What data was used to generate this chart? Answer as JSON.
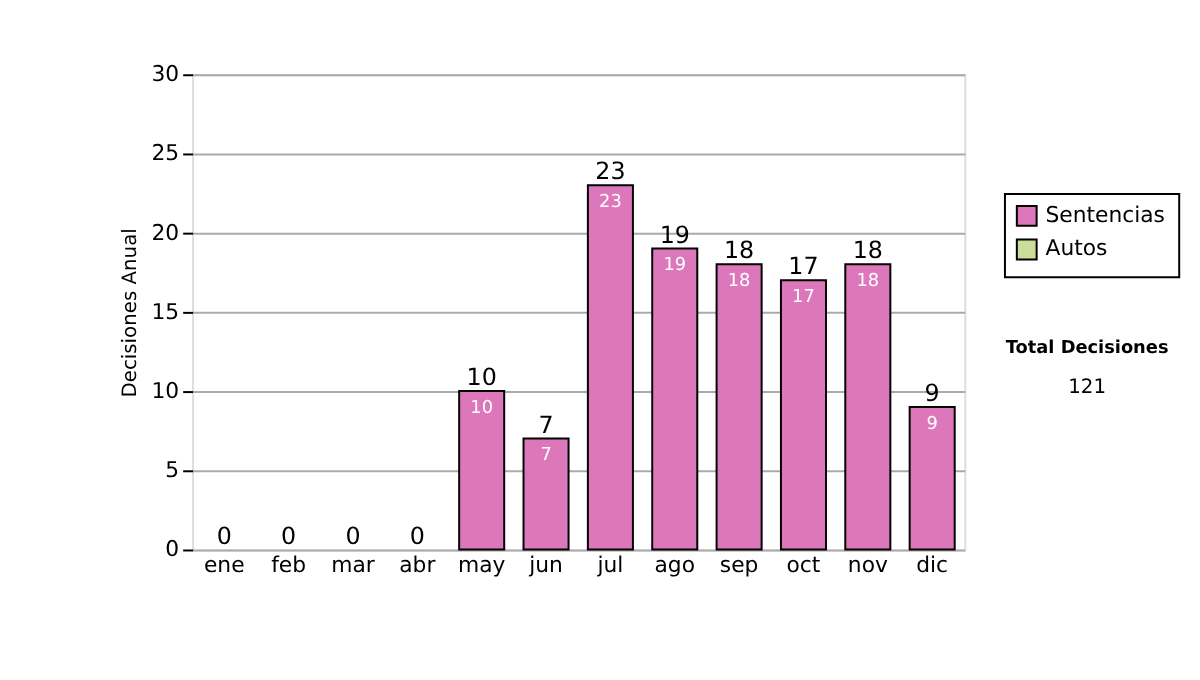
{
  "chart_data": {
    "type": "bar",
    "stacked": true,
    "ylabel": "Decisiones Anual",
    "categories": [
      "ene",
      "feb",
      "mar",
      "abr",
      "may",
      "jun",
      "jul",
      "ago",
      "sep",
      "oct",
      "nov",
      "dic"
    ],
    "series": [
      {
        "name": "Sentencias",
        "color": "#dd77bb",
        "values": [
          0,
          0,
          0,
          0,
          10,
          7,
          23,
          19,
          18,
          17,
          18,
          9
        ],
        "value_labels": [
          null,
          null,
          null,
          null,
          "10",
          "7",
          "23",
          "19",
          "18",
          "17",
          "18",
          "9"
        ]
      },
      {
        "name": "Autos",
        "color": "#ccdd99",
        "values": [
          0,
          0,
          0,
          0,
          0,
          0,
          0,
          0,
          0,
          0,
          0,
          0
        ]
      }
    ],
    "totals": [
      "0",
      "0",
      "0",
      "0",
      "10",
      "7",
      "23",
      "19",
      "18",
      "17",
      "18",
      "9"
    ],
    "ylim": [
      0,
      30
    ],
    "yticks": [
      0,
      5,
      10,
      15,
      20,
      25,
      30
    ],
    "grid": "y",
    "legend": "right",
    "annotations": [
      "Total Decisiones",
      "121"
    ]
  }
}
